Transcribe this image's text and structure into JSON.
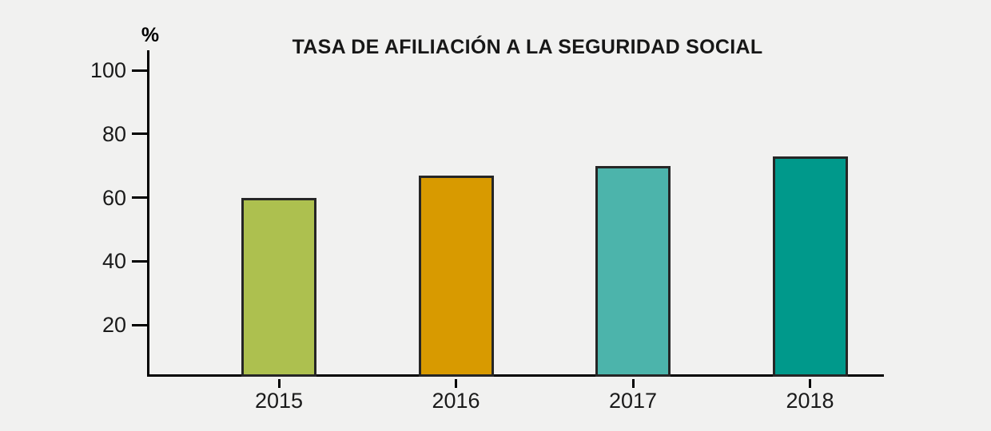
{
  "page": {
    "background_color": "#f1f1f0"
  },
  "chart_data": {
    "type": "bar",
    "title": "TASA DE AFILIACIÓN A LA SEGURIDAD SOCIAL",
    "xlabel": "",
    "ylabel": "%",
    "categories": [
      "2015",
      "2016",
      "2017",
      "2018"
    ],
    "values": [
      60,
      67,
      70,
      73
    ],
    "bar_colors": [
      "#adc04f",
      "#d89a00",
      "#4cb4ab",
      "#00998b"
    ],
    "bar_border_color": "#262626",
    "yticks": [
      20,
      40,
      60,
      80,
      100
    ],
    "ylim": [
      0,
      106
    ],
    "grid": false,
    "legend": "none",
    "axis_color": "#000000",
    "text_color": "#1a1a1a"
  }
}
